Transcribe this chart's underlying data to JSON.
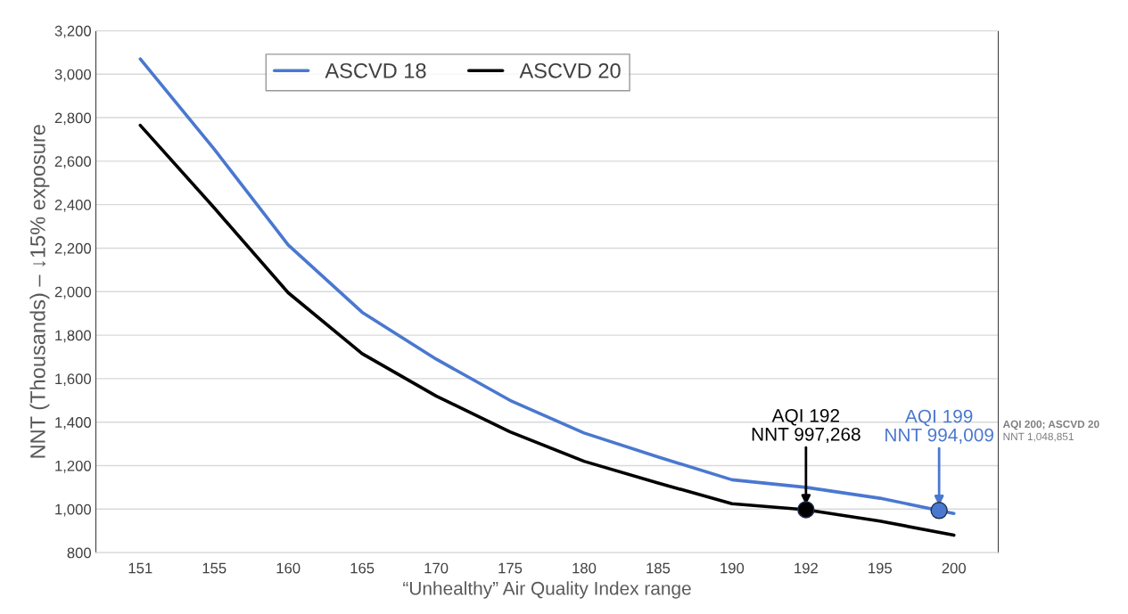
{
  "chart_data": {
    "type": "line",
    "xlabel": "“Unhealthy” Air Quality Index range",
    "ylabel": "NNT (Thousands) – ↓15% exposure",
    "categories": [
      "151",
      "155",
      "160",
      "165",
      "170",
      "175",
      "180",
      "185",
      "190",
      "192",
      "195",
      "200"
    ],
    "series": [
      {
        "name": "ASCVD 18",
        "color": "#4a78cf",
        "values": [
          3070,
          2655,
          2215,
          1905,
          1690,
          1500,
          1350,
          1240,
          1135,
          1100,
          1050,
          980
        ]
      },
      {
        "name": "ASCVD 20",
        "color": "#000000",
        "values": [
          2765,
          2385,
          1995,
          1715,
          1520,
          1355,
          1220,
          1120,
          1025,
          997,
          945,
          880
        ]
      }
    ],
    "ylim": [
      800,
      3200
    ],
    "yticks": [
      {
        "value": 800,
        "label": "800"
      },
      {
        "value": 1000,
        "label": "1,000"
      },
      {
        "value": 1200,
        "label": "1,200"
      },
      {
        "value": 1400,
        "label": "1,400"
      },
      {
        "value": 1600,
        "label": "1,600"
      },
      {
        "value": 1800,
        "label": "1,800"
      },
      {
        "value": 2000,
        "label": "2,000"
      },
      {
        "value": 2200,
        "label": "2,200"
      },
      {
        "value": 2400,
        "label": "2,400"
      },
      {
        "value": 2600,
        "label": "2,600"
      },
      {
        "value": 2800,
        "label": "2,800"
      },
      {
        "value": 3000,
        "label": "3,000"
      },
      {
        "value": 3200,
        "label": "3,200"
      }
    ],
    "annotations": [
      {
        "text": "AQI 192\nNNT 997,268",
        "x": "192",
        "y": 997.268
      },
      {
        "text": "AQI 199\nNNT 994,009",
        "y": 994.009
      },
      "AQI 200; ASCVD 20\nNNT 1,048,851"
    ],
    "grid": "y",
    "legend": "top",
    "marker": "none",
    "line_style": "solid"
  }
}
